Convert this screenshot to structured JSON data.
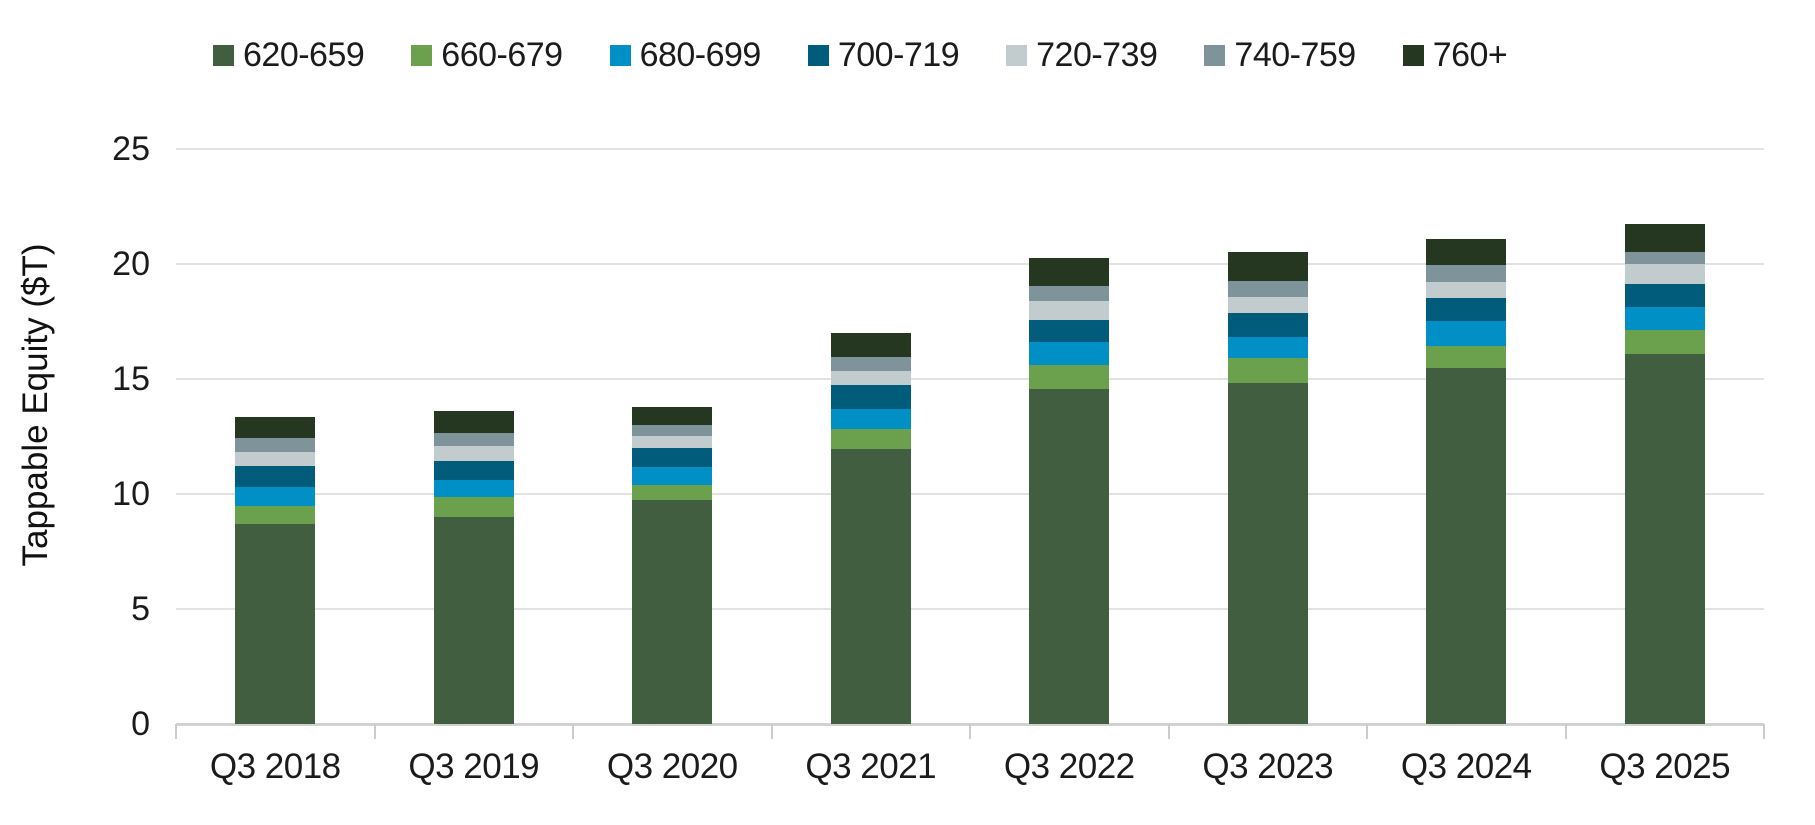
{
  "chart_data": {
    "type": "bar",
    "stacked": true,
    "title": "",
    "xlabel": "",
    "ylabel": "Tappable Equity ($T)",
    "ylim": [
      0,
      25
    ],
    "yticks": [
      0,
      5,
      10,
      15,
      20,
      25
    ],
    "grid": "horizontal",
    "legend_position": "top",
    "categories": [
      "Q3 2018",
      "Q3 2019",
      "Q3 2020",
      "Q3 2021",
      "Q3 2022",
      "Q3 2023",
      "Q3 2024",
      "Q3 2025"
    ],
    "series": [
      {
        "name": "620-659",
        "color": "#415E40",
        "values": [
          8.69,
          9.0,
          9.75,
          11.96,
          14.57,
          14.81,
          15.46,
          16.1
        ]
      },
      {
        "name": "660-679",
        "color": "#6BA04C",
        "values": [
          0.78,
          0.86,
          0.65,
          0.87,
          1.04,
          1.09,
          0.99,
          1.04
        ]
      },
      {
        "name": "680-699",
        "color": "#0090C6",
        "values": [
          0.82,
          0.75,
          0.76,
          0.87,
          1.01,
          0.94,
          1.07,
          1.0
        ]
      },
      {
        "name": "700-719",
        "color": "#005C7A",
        "values": [
          0.92,
          0.82,
          0.84,
          1.05,
          0.95,
          1.04,
          0.99,
          1.0
        ]
      },
      {
        "name": "720-739",
        "color": "#C2CBCD",
        "values": [
          0.62,
          0.64,
          0.51,
          0.61,
          0.82,
          0.7,
          0.72,
          0.87
        ]
      },
      {
        "name": "740-759",
        "color": "#7E939A",
        "values": [
          0.6,
          0.59,
          0.5,
          0.6,
          0.65,
          0.68,
          0.73,
          0.52
        ]
      },
      {
        "name": "760+",
        "color": "#253720",
        "values": [
          0.94,
          0.95,
          0.76,
          1.04,
          1.21,
          1.25,
          1.14,
          1.23
        ]
      }
    ]
  },
  "style_colors": {
    "gridline": "#e2e2e2",
    "axis_line": "#d2d2d2",
    "tick_mark": "#cccccc",
    "text": "#1b1b1b"
  }
}
